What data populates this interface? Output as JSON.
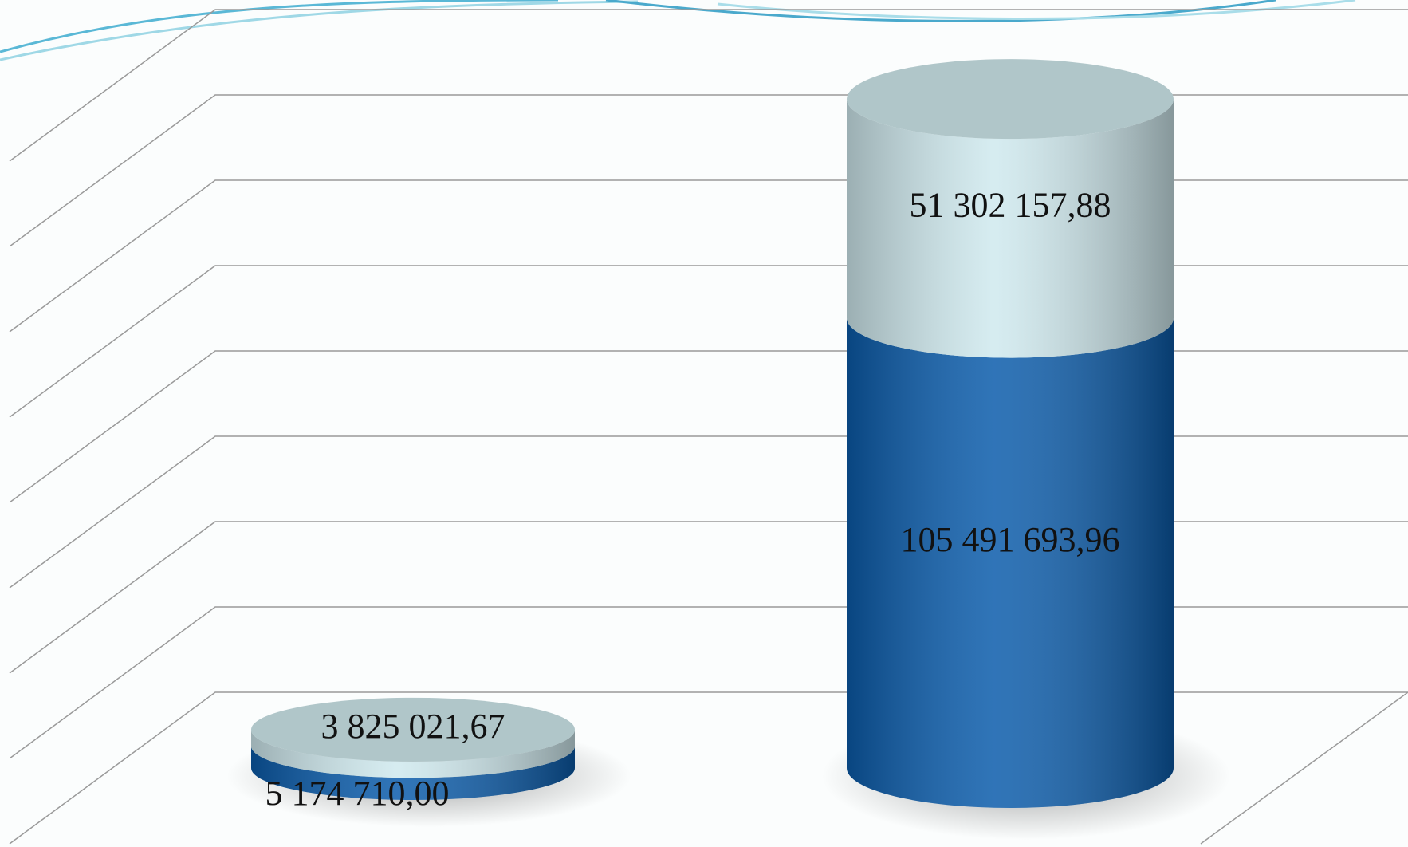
{
  "chart_data": {
    "type": "bar3d_stacked",
    "categories": [
      null,
      null
    ],
    "series": [
      {
        "color": "#0b5cab",
        "values": [
          5174710.0,
          105491693.96
        ],
        "value_labels": [
          "5 174 710,00",
          "105 491 693,96"
        ]
      },
      {
        "color": "#cfe9ee",
        "values": [
          3825021.67,
          51302157.88
        ],
        "value_labels": [
          "3 825 021,67",
          "51 302 157,88"
        ]
      }
    ],
    "ylim": [
      0,
      160000000
    ],
    "yticks": [
      0,
      20000000,
      40000000,
      60000000,
      80000000,
      100000000,
      120000000,
      140000000,
      160000000
    ],
    "grid": true
  }
}
